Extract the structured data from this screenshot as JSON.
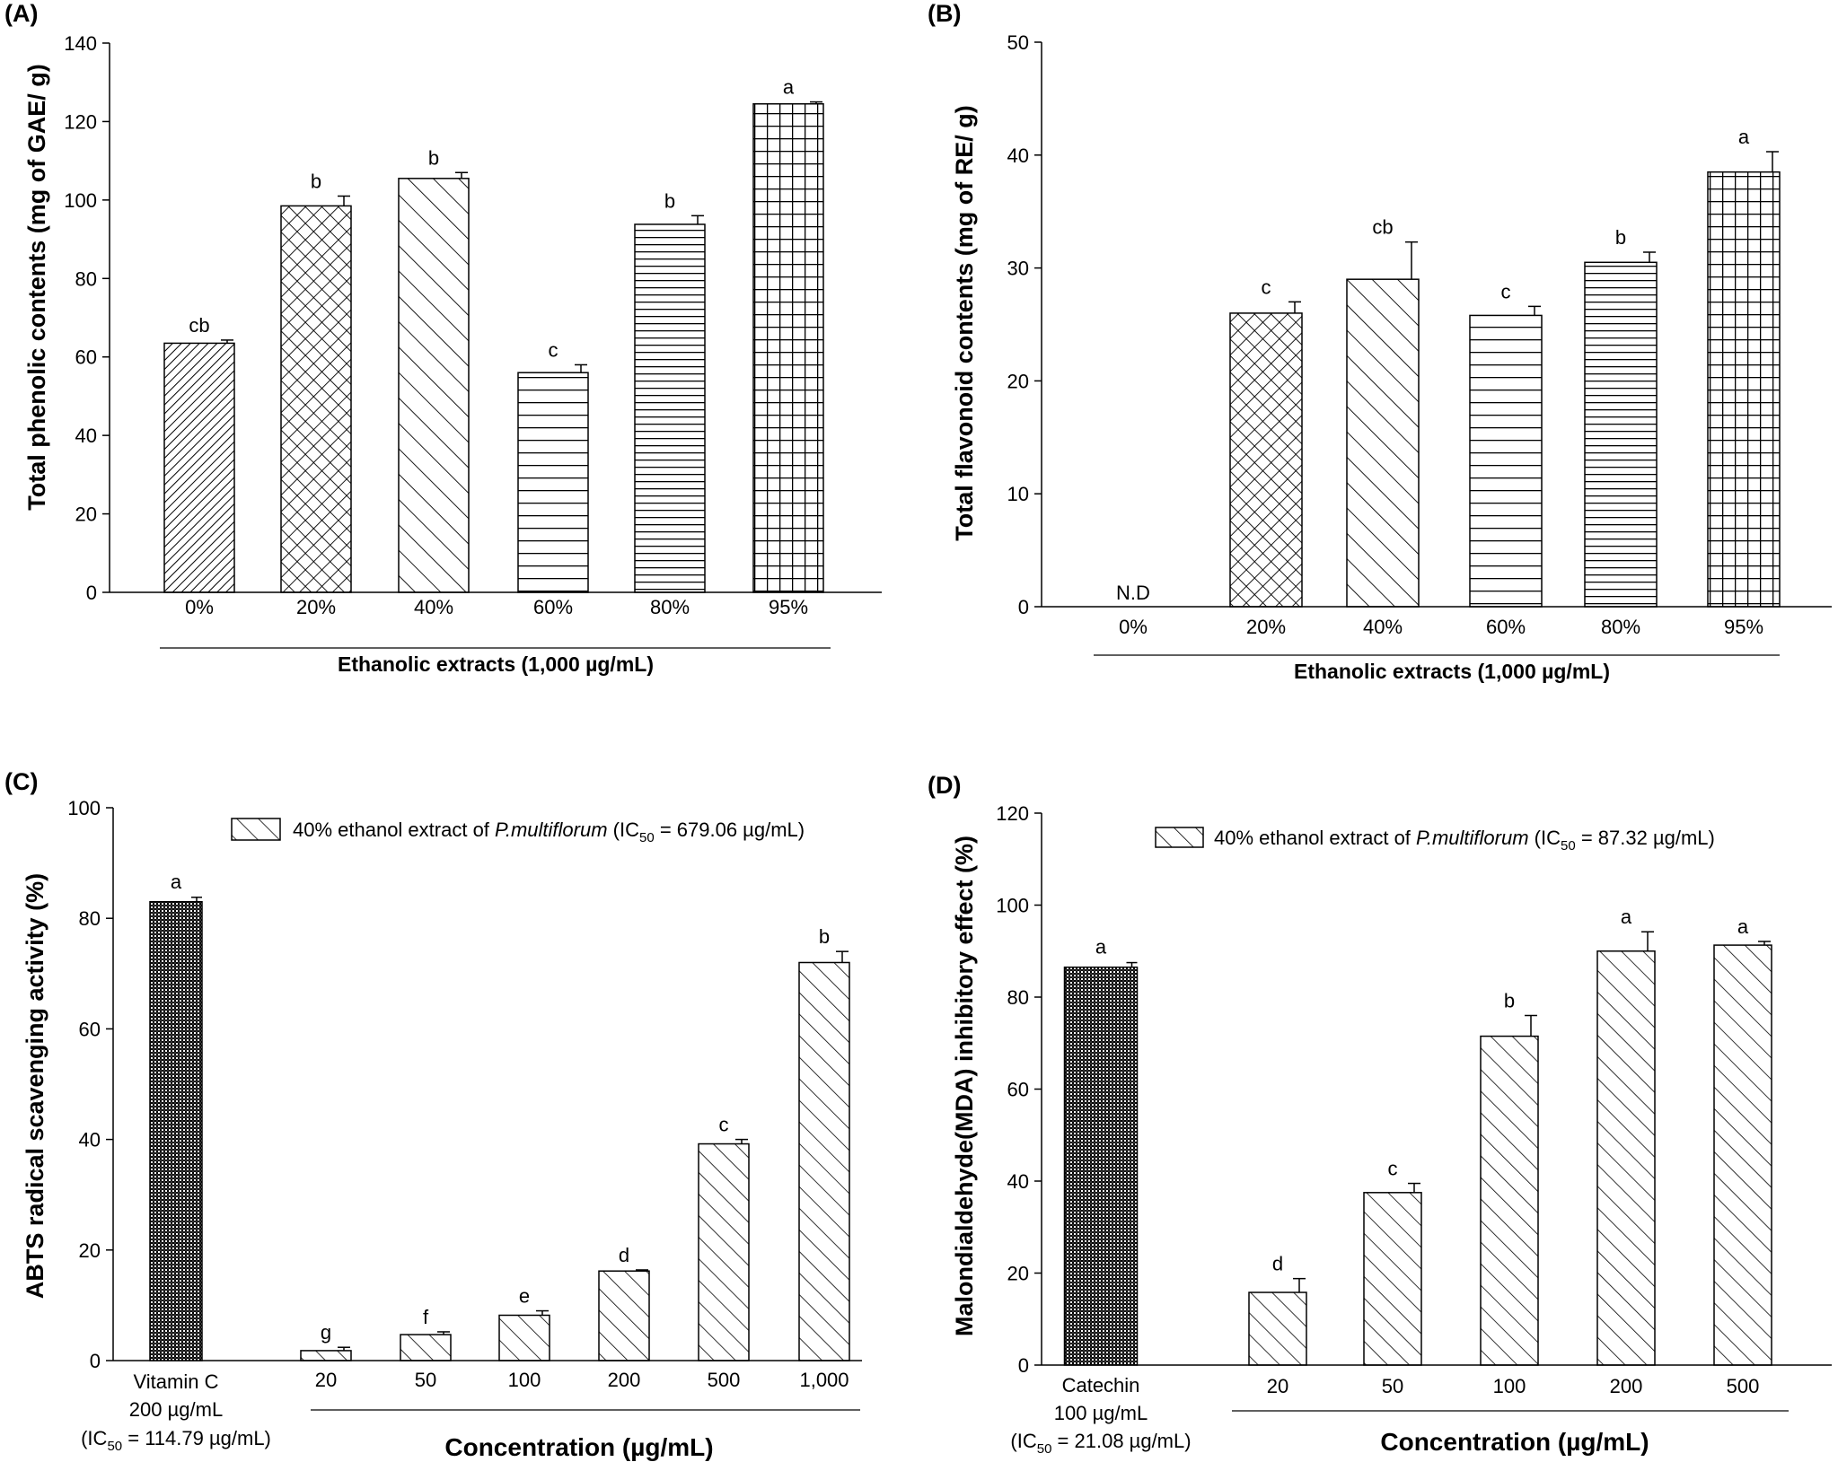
{
  "chart_data": [
    {
      "type": "bar",
      "panel": "(A)",
      "ylabel": "Total phenolic contents (mg of GAE/ g)",
      "xlabel": "Ethanolic extracts (1,000 µg/mL)",
      "ylim": [
        0,
        140
      ],
      "yticks": [
        0,
        20,
        40,
        60,
        80,
        100,
        120,
        140
      ],
      "categories": [
        "0%",
        "20%",
        "40%",
        "60%",
        "80%",
        "95%"
      ],
      "values": [
        63.5,
        98.5,
        105.5,
        56,
        93.8,
        124.5
      ],
      "errors": [
        0.8,
        2.5,
        1.5,
        2,
        2.2,
        0.5
      ],
      "letters": [
        "cb",
        "b",
        "b",
        "c",
        "b",
        "a"
      ],
      "patterns": [
        "diag-dense",
        "crosshatch",
        "diag-back",
        "hlines",
        "hlines-dense",
        "grid"
      ]
    },
    {
      "type": "bar",
      "panel": "(B)",
      "ylabel": "Total flavonoid contents (mg of RE/ g)",
      "xlabel": "Ethanolic extracts (1,000 µg/mL)",
      "ylim": [
        0,
        50
      ],
      "yticks": [
        0,
        10,
        20,
        30,
        40,
        50
      ],
      "categories": [
        "0%",
        "20%",
        "40%",
        "60%",
        "80%",
        "95%"
      ],
      "values": [
        0,
        26,
        29,
        25.8,
        30.5,
        38.5
      ],
      "errors": [
        0,
        1,
        3.3,
        0.8,
        0.9,
        1.8
      ],
      "letters": [
        "N.D",
        "c",
        "cb",
        "c",
        "b",
        "a"
      ],
      "patterns": [
        "none",
        "crosshatch",
        "diag-back",
        "hlines",
        "hlines-dense",
        "grid"
      ]
    },
    {
      "type": "bar",
      "panel": "(C)",
      "ylabel": "ABTS radical scavenging activity (%)",
      "xlabel": "Concentration (µg/mL)",
      "ylim": [
        0,
        100
      ],
      "yticks": [
        0,
        20,
        40,
        60,
        80,
        100
      ],
      "reference": {
        "label_lines": [
          "Vitamin C",
          "200 µg/mL"
        ],
        "ic50_text": "(IC",
        "ic50_sub": "50",
        "ic50_rest": " = 114.79 µg/mL)",
        "value": 83,
        "error": 0.8,
        "letter": "a"
      },
      "categories": [
        "20",
        "50",
        "100",
        "200",
        "500",
        "1,000"
      ],
      "values": [
        1.8,
        4.7,
        8.2,
        16.2,
        39.2,
        72
      ],
      "errors": [
        0.6,
        0.5,
        0.8,
        0.2,
        0.8,
        2
      ],
      "letters": [
        "g",
        "f",
        "e",
        "d",
        "c",
        "b"
      ],
      "legend": {
        "pre": "40% ethanol extract of ",
        "species": "P.multiflorum",
        "ic_pre": "(IC",
        "ic_sub": "50",
        "ic_post": " = 679.06 µg/mL)"
      }
    },
    {
      "type": "bar",
      "panel": "(D)",
      "ylabel": "Malondialdehyde(MDA) inhibitory effect (%)",
      "xlabel": "Concentration (µg/mL)",
      "ylim": [
        0,
        120
      ],
      "yticks": [
        0,
        20,
        40,
        60,
        80,
        100,
        120
      ],
      "reference": {
        "label_lines": [
          "Catechin",
          "100 µg/mL"
        ],
        "ic50_text": "(IC",
        "ic50_sub": "50",
        "ic50_rest": " = 21.08 µg/mL)",
        "value": 86.5,
        "error": 1,
        "letter": "a"
      },
      "categories": [
        "20",
        "50",
        "100",
        "200",
        "500"
      ],
      "values": [
        15.8,
        37.5,
        71.5,
        90,
        91.3
      ],
      "errors": [
        3,
        2,
        4.5,
        4.2,
        0.8
      ],
      "letters": [
        "d",
        "c",
        "b",
        "a",
        "a"
      ],
      "legend": {
        "pre": "40% ethanol extract of ",
        "species": "P.multiflorum",
        "ic_pre": "(IC",
        "ic_sub": "50",
        "ic_post": " = 87.32 µg/mL)"
      }
    }
  ]
}
